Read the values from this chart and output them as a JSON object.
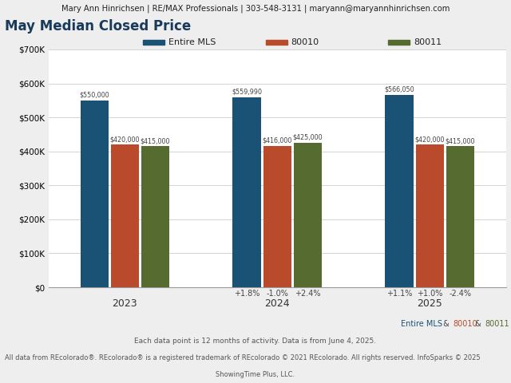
{
  "header_text": "Mary Ann Hinrichsen | RE/MAX Professionals | 303-548-3131 | maryann@maryannhinrichsen.com",
  "title": "May Median Closed Price",
  "legend_labels": [
    "Entire MLS",
    "80010",
    "80011"
  ],
  "bar_colors": [
    "#1a5276",
    "#b94a2c",
    "#556b2f"
  ],
  "years": [
    "2023",
    "2024",
    "2025"
  ],
  "values": {
    "Entire MLS": [
      550000,
      559990,
      566050
    ],
    "80010": [
      420000,
      416000,
      420000
    ],
    "80011": [
      415000,
      425000,
      415000
    ]
  },
  "value_labels": {
    "Entire MLS": [
      "$550,000",
      "$559,990",
      "$566,050"
    ],
    "80010": [
      "$420,000",
      "$416,000",
      "$420,000"
    ],
    "80011": [
      "$415,000",
      "$425,000",
      "$415,000"
    ]
  },
  "pct_changes_2024": [
    "+1.8%",
    "-1.0%",
    "+2.4%"
  ],
  "pct_changes_2025": [
    "+1.1%",
    "+1.0%",
    "-2.4%"
  ],
  "ylim": [
    0,
    700000
  ],
  "ytick_values": [
    0,
    100000,
    200000,
    300000,
    400000,
    500000,
    600000,
    700000
  ],
  "ytick_labels": [
    "$0",
    "$100K",
    "$200K",
    "$300K",
    "$400K",
    "$500K",
    "$600K",
    "$700K"
  ],
  "footer_colored": [
    [
      "Entire MLS",
      "#1a5276"
    ],
    [
      " & ",
      "#444444"
    ],
    [
      "80010",
      "#b94a2c"
    ],
    [
      " & ",
      "#444444"
    ],
    [
      "80011",
      "#556b2f"
    ]
  ],
  "footer_line2": "Each data point is 12 months of activity. Data is from June 4, 2025.",
  "footer_line3": "All data from REcolorado®. REcolorado® is a registered trademark of REcolorado © 2021 REcolorado. All rights reserved. InfoSparks © 2025",
  "footer_line4": "ShowingTime Plus, LLC.",
  "bg_color": "#eeeeee",
  "plot_bg_color": "#ffffff",
  "header_bg_color": "#dddddd",
  "title_color": "#1a3a5c"
}
